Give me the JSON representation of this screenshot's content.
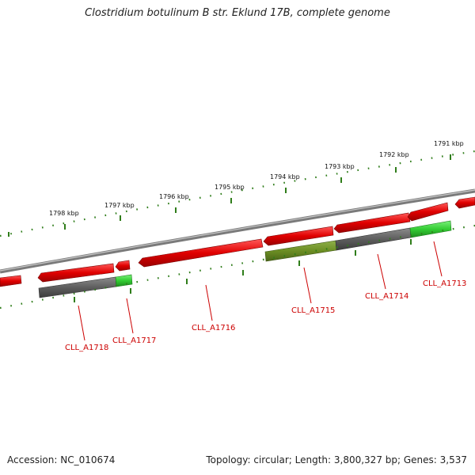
{
  "title": "Clostridium botulinum B str. Eklund 17B, complete genome",
  "footer": {
    "accession": "Accession: NC_010674",
    "stats": "Topology: circular; Length: 3,800,327 bp; Genes: 3,537"
  },
  "colors": {
    "backbone": "#8a8a8a",
    "tick": "#2f7d1a",
    "gene_red": "#e60000",
    "gene_gray": "#666666",
    "gene_green": "#2ecc2e",
    "gene_olive": "#6b8e23",
    "label": "#cc0000"
  },
  "kbp_labels": [
    "1791 kbp",
    "1792 kbp",
    "1793 kbp",
    "1794 kbp",
    "1795 kbp",
    "1796 kbp",
    "1797 kbp",
    "1798 kbp"
  ],
  "gene_labels": [
    "CLL_A1713",
    "CLL_A1714",
    "CLL_A1715",
    "CLL_A1716",
    "CLL_A1717",
    "CLL_A1718"
  ]
}
